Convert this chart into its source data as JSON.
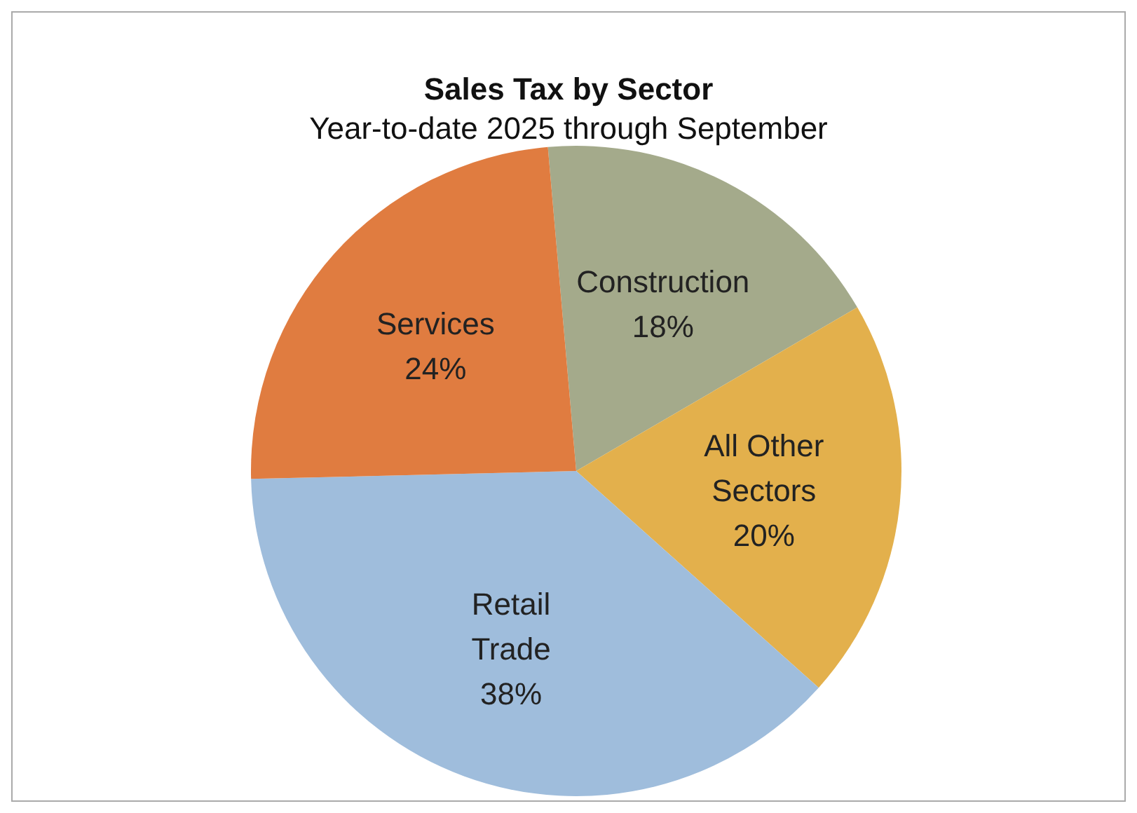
{
  "chart_data": {
    "type": "pie",
    "title": "Sales Tax by Sector",
    "subtitle": "Year-to-date 2025 through September",
    "categories": [
      "Construction",
      "All Other Sectors",
      "Retail Trade",
      "Services"
    ],
    "values": [
      18,
      20,
      38,
      24
    ],
    "value_labels": [
      "18%",
      "20%",
      "38%",
      "24%"
    ],
    "colors": [
      "#a4aa8b",
      "#e3b04c",
      "#9fbddc",
      "#e07c40"
    ],
    "legend": false
  }
}
